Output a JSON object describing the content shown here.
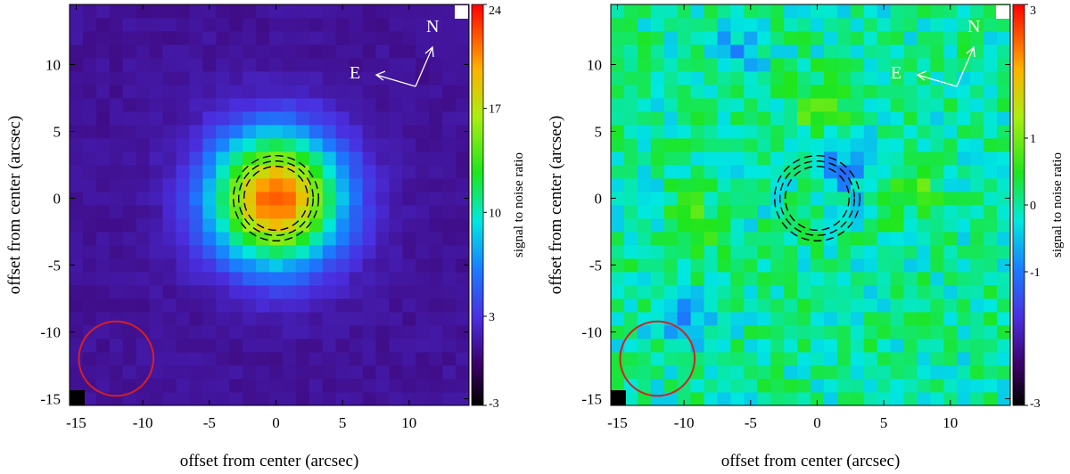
{
  "chart_data": [
    {
      "type": "heatmap",
      "name": "left",
      "title": "",
      "xlabel": "offset from center (arcsec)",
      "ylabel": "offset from center (arcsec)",
      "xlim": [
        -15.5,
        14.5
      ],
      "ylim": [
        -15.5,
        14.5
      ],
      "xticks": [
        -15,
        -10,
        -5,
        0,
        5,
        10
      ],
      "yticks": [
        10,
        5,
        0,
        -5,
        -10,
        -15
      ],
      "xtick_labels": [
        "-15",
        "-10",
        "-5",
        "0",
        "5",
        "10"
      ],
      "ytick_labels": [
        "10",
        "5",
        "0",
        "-5",
        "-10",
        "-15"
      ],
      "colorbar": {
        "label": "signal to noise ratio",
        "range": [
          -3,
          24
        ],
        "ticks": [
          24,
          17,
          10,
          3,
          -3
        ],
        "tick_labels": [
          "24",
          "17",
          "10",
          "3",
          "-3"
        ]
      },
      "source": {
        "x": 0,
        "y": 0,
        "peak": 22,
        "sigma": 3.4,
        "background": 1.0
      },
      "apertures": {
        "center": [
          0,
          0
        ],
        "radii": [
          2.4,
          2.8,
          3.2
        ]
      },
      "beam_circle": {
        "center": [
          -12,
          -12
        ],
        "radius": 2.8,
        "color": "#d62020"
      },
      "compass": {
        "north": "N",
        "east": "E"
      }
    },
    {
      "type": "heatmap",
      "name": "right",
      "title": "",
      "xlabel": "offset from center (arcsec)",
      "ylabel": "offset from center (arcsec)",
      "xlim": [
        -15.5,
        14.5
      ],
      "ylim": [
        -15.5,
        14.5
      ],
      "xticks": [
        -15,
        -10,
        -5,
        0,
        5,
        10
      ],
      "yticks": [
        10,
        5,
        0,
        -5,
        -10,
        -15
      ],
      "xtick_labels": [
        "-15",
        "-10",
        "-5",
        "0",
        "5",
        "10"
      ],
      "ytick_labels": [
        "10",
        "5",
        "0",
        "-5",
        "-10",
        "-15"
      ],
      "colorbar": {
        "label": "signal to noise ratio",
        "range": [
          -3,
          3
        ],
        "ticks": [
          3,
          1,
          0,
          -1,
          -3
        ],
        "tick_labels": [
          "3",
          "1",
          "0",
          "-1",
          "-3"
        ]
      },
      "noise": {
        "mean": 0.0,
        "amplitude": 0.45,
        "features": [
          {
            "x": 0,
            "y": 7,
            "v": 0.8
          },
          {
            "x": -9,
            "y": -2,
            "v": 0.7
          },
          {
            "x": 7,
            "y": 1,
            "v": 0.7
          },
          {
            "x": 2,
            "y": 2,
            "v": -0.9
          },
          {
            "x": -6,
            "y": 11,
            "v": -0.6
          },
          {
            "x": -10,
            "y": -9,
            "v": -0.6
          }
        ]
      },
      "apertures": {
        "center": [
          0,
          0
        ],
        "radii": [
          2.4,
          2.8,
          3.2
        ]
      },
      "beam_circle": {
        "center": [
          -12,
          -12
        ],
        "radius": 2.8,
        "color": "#d62020"
      },
      "compass": {
        "north": "N",
        "east": "E"
      }
    }
  ]
}
